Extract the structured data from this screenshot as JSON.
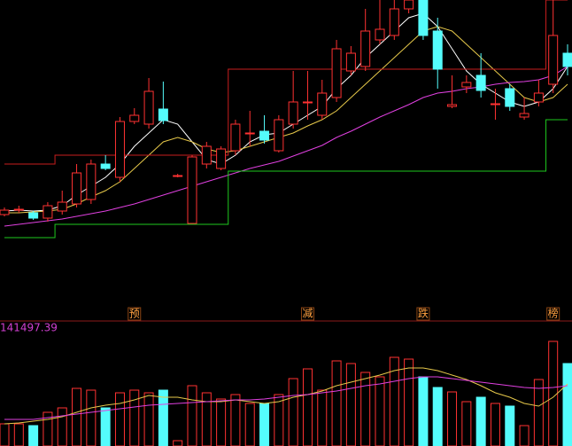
{
  "chart_data": {
    "type": "candlestick",
    "up_color": "#ff3232",
    "down_color": "#54fcfc",
    "ylim": [
      0,
      300
    ],
    "open": [
      58,
      64,
      60,
      54,
      62,
      70,
      75,
      115,
      100,
      163,
      160,
      177,
      102,
      48,
      115,
      110,
      130,
      150,
      152,
      130,
      160,
      185,
      170,
      190,
      220,
      225,
      255,
      260,
      290,
      300,
      265,
      180,
      202,
      215,
      183,
      200,
      168,
      185,
      205,
      240
    ],
    "close": [
      63,
      64,
      54,
      68,
      72,
      105,
      115,
      110,
      163,
      170,
      197,
      164,
      102,
      123,
      135,
      132,
      160,
      150,
      142,
      165,
      185,
      185,
      195,
      245,
      240,
      265,
      267,
      290,
      300,
      260,
      222,
      182,
      207,
      198,
      183,
      180,
      172,
      195,
      260,
      225
    ],
    "high": [
      66,
      68,
      62,
      72,
      85,
      115,
      120,
      125,
      168,
      178,
      212,
      208,
      104,
      125,
      140,
      135,
      165,
      175,
      170,
      170,
      220,
      220,
      210,
      255,
      248,
      290,
      300,
      300,
      300,
      300,
      280,
      215,
      215,
      240,
      200,
      205,
      190,
      210,
      300,
      250
    ],
    "low": [
      56,
      60,
      52,
      50,
      58,
      66,
      70,
      108,
      95,
      160,
      155,
      160,
      100,
      48,
      110,
      108,
      125,
      135,
      138,
      128,
      155,
      165,
      165,
      185,
      215,
      220,
      250,
      255,
      285,
      255,
      200,
      178,
      195,
      190,
      165,
      175,
      165,
      180,
      195,
      215
    ],
    "series": [
      {
        "color": "#ffffff",
        "values": [
          62,
          63,
          62,
          63,
          68,
          80,
          90,
          100,
          115,
          135,
          150,
          165,
          160,
          140,
          120,
          115,
          125,
          140,
          148,
          150,
          160,
          170,
          180,
          200,
          215,
          235,
          250,
          265,
          280,
          285,
          270,
          245,
          220,
          205,
          195,
          185,
          180,
          185,
          200,
          225
        ]
      },
      {
        "color": "#e6c84a",
        "values": [
          60,
          60,
          61,
          62,
          64,
          70,
          78,
          85,
          95,
          110,
          125,
          140,
          145,
          140,
          132,
          128,
          130,
          135,
          140,
          145,
          150,
          158,
          165,
          175,
          190,
          205,
          220,
          235,
          250,
          265,
          270,
          265,
          250,
          235,
          220,
          205,
          190,
          185,
          190,
          205
        ]
      },
      {
        "color": "#e040e0",
        "values": [
          45,
          47,
          49,
          51,
          53,
          56,
          59,
          62,
          66,
          70,
          75,
          80,
          85,
          90,
          95,
          100,
          105,
          110,
          114,
          118,
          124,
          130,
          136,
          145,
          152,
          160,
          168,
          175,
          182,
          190,
          195,
          197,
          200,
          202,
          205,
          207,
          208,
          210,
          215,
          225
        ]
      },
      {
        "color": "#c81e1e",
        "step": true,
        "values": [
          115,
          115,
          115,
          115,
          125,
          125,
          125,
          125,
          125,
          125,
          125,
          125,
          125,
          125,
          125,
          125,
          222,
          222,
          222,
          222,
          222,
          222,
          222,
          222,
          222,
          222,
          222,
          222,
          222,
          222,
          222,
          222,
          222,
          222,
          222,
          222,
          222,
          222,
          300,
          300
        ]
      },
      {
        "color": "#1ec81e",
        "step": true,
        "values": [
          32,
          32,
          32,
          32,
          47,
          47,
          47,
          47,
          47,
          47,
          47,
          47,
          47,
          47,
          47,
          47,
          107,
          107,
          107,
          107,
          107,
          107,
          107,
          107,
          107,
          107,
          107,
          107,
          107,
          107,
          107,
          107,
          107,
          107,
          107,
          107,
          107,
          107,
          165,
          165
        ]
      }
    ],
    "markers": [
      {
        "label": "预",
        "index": 9
      },
      {
        "label": "减",
        "index": 21
      },
      {
        "label": "跌",
        "index": 29
      },
      {
        "label": "榜",
        "index": 38
      }
    ],
    "volume": {
      "label": "141497.39",
      "ylim": [
        0,
        140
      ],
      "values": [
        25,
        25,
        23,
        38,
        43,
        65,
        63,
        43,
        60,
        63,
        60,
        63,
        6,
        68,
        60,
        53,
        58,
        48,
        48,
        58,
        76,
        87,
        63,
        96,
        93,
        83,
        78,
        100,
        98,
        78,
        66,
        61,
        50,
        55,
        48,
        45,
        23,
        75,
        118,
        93
      ],
      "series": [
        {
          "color": "#e6c84a",
          "values": [
            25,
            26,
            28,
            30,
            33,
            38,
            43,
            46,
            48,
            52,
            57,
            55,
            55,
            52,
            50,
            50,
            52,
            50,
            48,
            50,
            55,
            58,
            62,
            68,
            72,
            76,
            80,
            85,
            88,
            88,
            85,
            80,
            75,
            68,
            60,
            55,
            48,
            45,
            55,
            70
          ]
        },
        {
          "color": "#e040e0",
          "values": [
            30,
            30,
            30,
            32,
            34,
            36,
            38,
            40,
            42,
            44,
            46,
            47,
            48,
            49,
            50,
            51,
            52,
            52,
            53,
            55,
            57,
            58,
            60,
            62,
            65,
            68,
            70,
            73,
            76,
            78,
            78,
            76,
            74,
            72,
            70,
            68,
            66,
            65,
            66,
            68
          ]
        }
      ]
    }
  }
}
